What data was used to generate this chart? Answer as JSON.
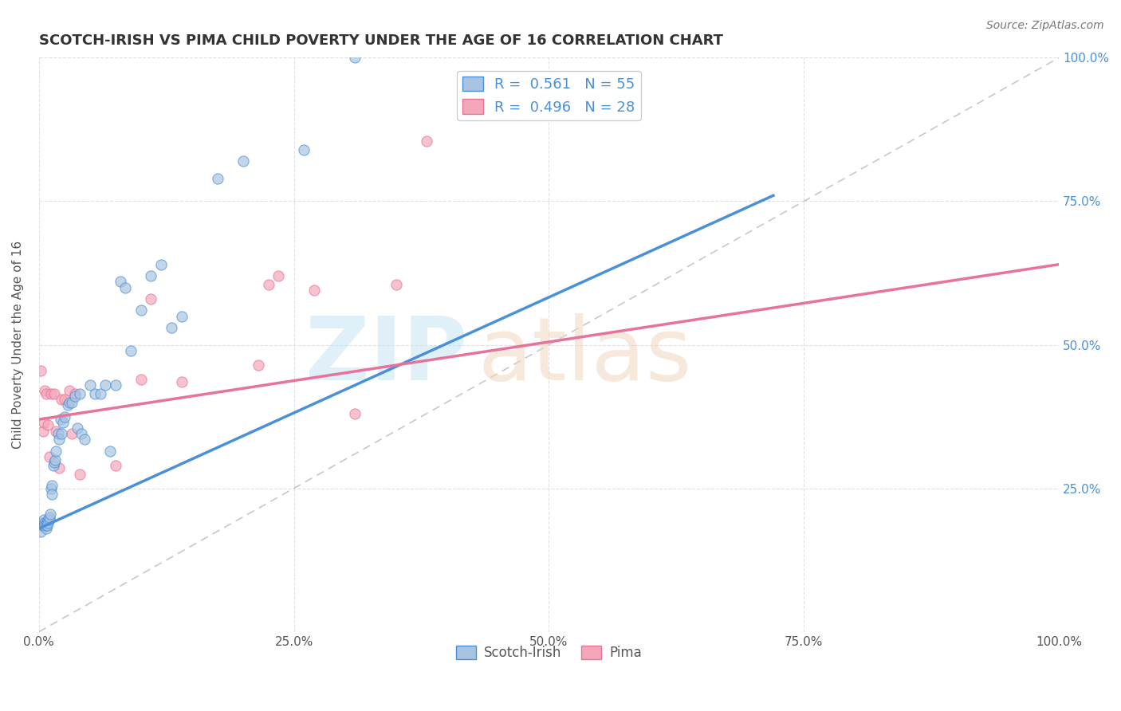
{
  "title": "SCOTCH-IRISH VS PIMA CHILD POVERTY UNDER THE AGE OF 16 CORRELATION CHART",
  "source": "Source: ZipAtlas.com",
  "ylabel": "Child Poverty Under the Age of 16",
  "r_scotch_irish": 0.561,
  "n_scotch_irish": 55,
  "r_pima": 0.496,
  "n_pima": 28,
  "scotch_irish_color": "#a8c4e0",
  "pima_color": "#f4a7b9",
  "scotch_irish_line_color": "#4a90d9",
  "pima_line_color": "#e8729a",
  "diagonal_color": "#c8c8c8",
  "background_color": "#ffffff",
  "grid_color": "#e0e0e0",
  "title_color": "#333333",
  "scotch_irish_x": [
    0.002,
    0.003,
    0.004,
    0.005,
    0.005,
    0.006,
    0.006,
    0.007,
    0.007,
    0.008,
    0.008,
    0.009,
    0.009,
    0.01,
    0.01,
    0.011,
    0.012,
    0.013,
    0.013,
    0.014,
    0.015,
    0.016,
    0.017,
    0.019,
    0.02,
    0.021,
    0.022,
    0.024,
    0.025,
    0.028,
    0.03,
    0.032,
    0.035,
    0.038,
    0.04,
    0.042,
    0.045,
    0.05,
    0.055,
    0.06,
    0.065,
    0.07,
    0.075,
    0.08,
    0.085,
    0.09,
    0.1,
    0.11,
    0.12,
    0.13,
    0.14,
    0.175,
    0.2,
    0.26,
    0.31
  ],
  "scotch_irish_y": [
    0.175,
    0.185,
    0.19,
    0.185,
    0.195,
    0.19,
    0.185,
    0.18,
    0.185,
    0.19,
    0.185,
    0.195,
    0.19,
    0.195,
    0.2,
    0.205,
    0.25,
    0.255,
    0.24,
    0.29,
    0.295,
    0.3,
    0.315,
    0.345,
    0.335,
    0.37,
    0.345,
    0.365,
    0.375,
    0.395,
    0.4,
    0.4,
    0.41,
    0.355,
    0.415,
    0.345,
    0.335,
    0.43,
    0.415,
    0.415,
    0.43,
    0.315,
    0.43,
    0.61,
    0.6,
    0.49,
    0.56,
    0.62,
    0.64,
    0.53,
    0.55,
    0.79,
    0.82,
    0.84,
    1.0
  ],
  "pima_x": [
    0.002,
    0.004,
    0.005,
    0.006,
    0.007,
    0.009,
    0.01,
    0.012,
    0.015,
    0.017,
    0.02,
    0.022,
    0.025,
    0.03,
    0.032,
    0.035,
    0.04,
    0.075,
    0.1,
    0.11,
    0.14,
    0.215,
    0.225,
    0.235,
    0.27,
    0.31,
    0.35,
    0.38
  ],
  "pima_y": [
    0.455,
    0.35,
    0.365,
    0.42,
    0.415,
    0.36,
    0.305,
    0.415,
    0.415,
    0.35,
    0.285,
    0.405,
    0.405,
    0.42,
    0.345,
    0.415,
    0.275,
    0.29,
    0.44,
    0.58,
    0.435,
    0.465,
    0.605,
    0.62,
    0.595,
    0.38,
    0.605,
    0.855
  ],
  "scotch_line_x0": 0.0,
  "scotch_line_y0": 0.18,
  "scotch_line_x1": 0.72,
  "scotch_line_y1": 0.76,
  "pima_line_x0": 0.0,
  "pima_line_y0": 0.37,
  "pima_line_x1": 1.0,
  "pima_line_y1": 0.64,
  "xlim": [
    0.0,
    1.0
  ],
  "ylim": [
    0.0,
    1.0
  ],
  "xticks": [
    0.0,
    0.25,
    0.5,
    0.75,
    1.0
  ],
  "yticks": [
    0.0,
    0.25,
    0.5,
    0.75,
    1.0
  ],
  "xticklabels": [
    "0.0%",
    "25.0%",
    "50.0%",
    "75.0%",
    "100.0%"
  ],
  "left_yticklabels": [
    "",
    "",
    "",
    "",
    ""
  ],
  "right_yticklabels": [
    "25.0%",
    "50.0%",
    "75.0%",
    "100.0%"
  ],
  "right_yticks": [
    0.25,
    0.5,
    0.75,
    1.0
  ],
  "marker_size": 90,
  "alpha": 0.7
}
